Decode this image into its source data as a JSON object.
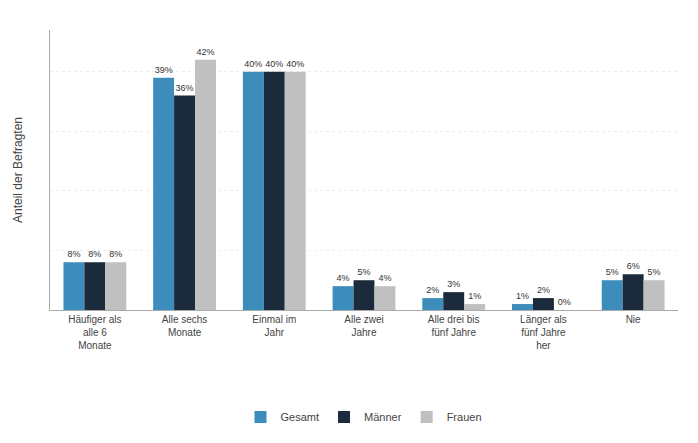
{
  "chart_data": {
    "type": "bar",
    "categories": [
      "Häufiger als\nalle 6\nMonate",
      "Alle sechs\nMonate",
      "Einmal im\nJahr",
      "Alle zwei\nJahre",
      "Alle drei bis\nfünf Jahre",
      "Länger als\nfünf Jahre\nher",
      "Nie"
    ],
    "series": [
      {
        "name": "Gesamt",
        "color": "#3c8dbc",
        "values": [
          8,
          39,
          40,
          4,
          2,
          1,
          5
        ],
        "value_labels": [
          "8%",
          "39%",
          "40%",
          "4%",
          "2%",
          "1%",
          "5%"
        ]
      },
      {
        "name": "Männer",
        "color": "#1c2b3c",
        "values": [
          8,
          36,
          40,
          5,
          3,
          2,
          6
        ],
        "value_labels": [
          "8%",
          "36%",
          "40%",
          "5%",
          "3%",
          "2%",
          "6%"
        ]
      },
      {
        "name": "Frauen",
        "color": "#c0c0c0",
        "values": [
          8,
          42,
          40,
          4,
          1,
          0,
          5
        ],
        "value_labels": [
          "8%",
          "42%",
          "40%",
          "4%",
          "1%",
          "0%",
          "5%"
        ]
      }
    ],
    "ylabel": "Anteil der Befragten",
    "ylim": [
      0,
      47
    ],
    "yticks": [
      10,
      20,
      30,
      40
    ],
    "grid": true,
    "data_labels": true,
    "tick_labels": "x",
    "legend": "bottom"
  }
}
